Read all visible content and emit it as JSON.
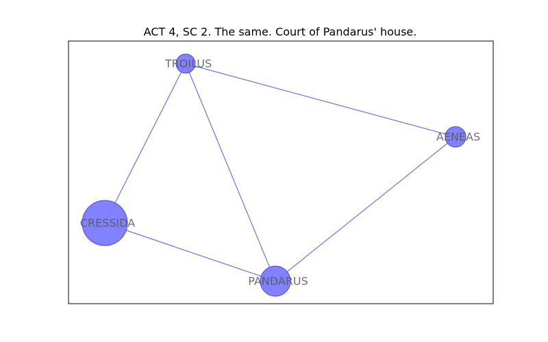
{
  "title": "ACT 4, SC 2. The same. Court of Pandarus' house.",
  "colors": {
    "node_fill": "#7b7bff",
    "node_stroke": "#4a4ae8",
    "edge": "#6f6ff2"
  },
  "graph": {
    "nodes": [
      {
        "id": "TROILUS",
        "label": "TROILUS"
      },
      {
        "id": "AENEAS",
        "label": "AENEAS"
      },
      {
        "id": "CRESSIDA",
        "label": "CRESSIDA"
      },
      {
        "id": "PANDARUS",
        "label": "PANDARUS"
      }
    ],
    "edges": [
      [
        "TROILUS",
        "AENEAS"
      ],
      [
        "TROILUS",
        "CRESSIDA"
      ],
      [
        "TROILUS",
        "PANDARUS"
      ],
      [
        "CRESSIDA",
        "PANDARUS"
      ],
      [
        "PANDARUS",
        "AENEAS"
      ]
    ]
  }
}
